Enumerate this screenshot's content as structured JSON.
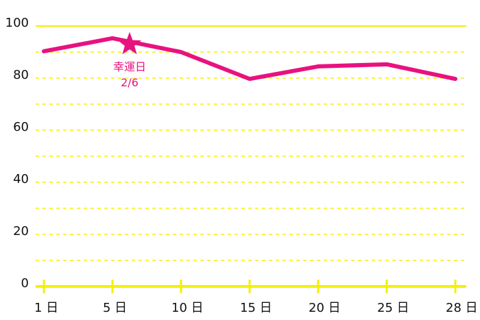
{
  "chart_data": {
    "type": "line",
    "categories": [
      "1 日",
      "5 日",
      "10 日",
      "15 日",
      "20 日",
      "25 日",
      "28 日"
    ],
    "series": [
      {
        "color": "#e8127f",
        "values": [
          90.3,
          95.3,
          90,
          79.7,
          84.5,
          85.3,
          79.7
        ]
      }
    ],
    "ylim": [
      0,
      100
    ],
    "yticks": [
      0,
      20,
      40,
      60,
      80,
      100
    ],
    "grid": true,
    "grid_color": "#f5f000",
    "annotation": {
      "label": "幸運日",
      "date": "2/6",
      "value": 93
    }
  }
}
